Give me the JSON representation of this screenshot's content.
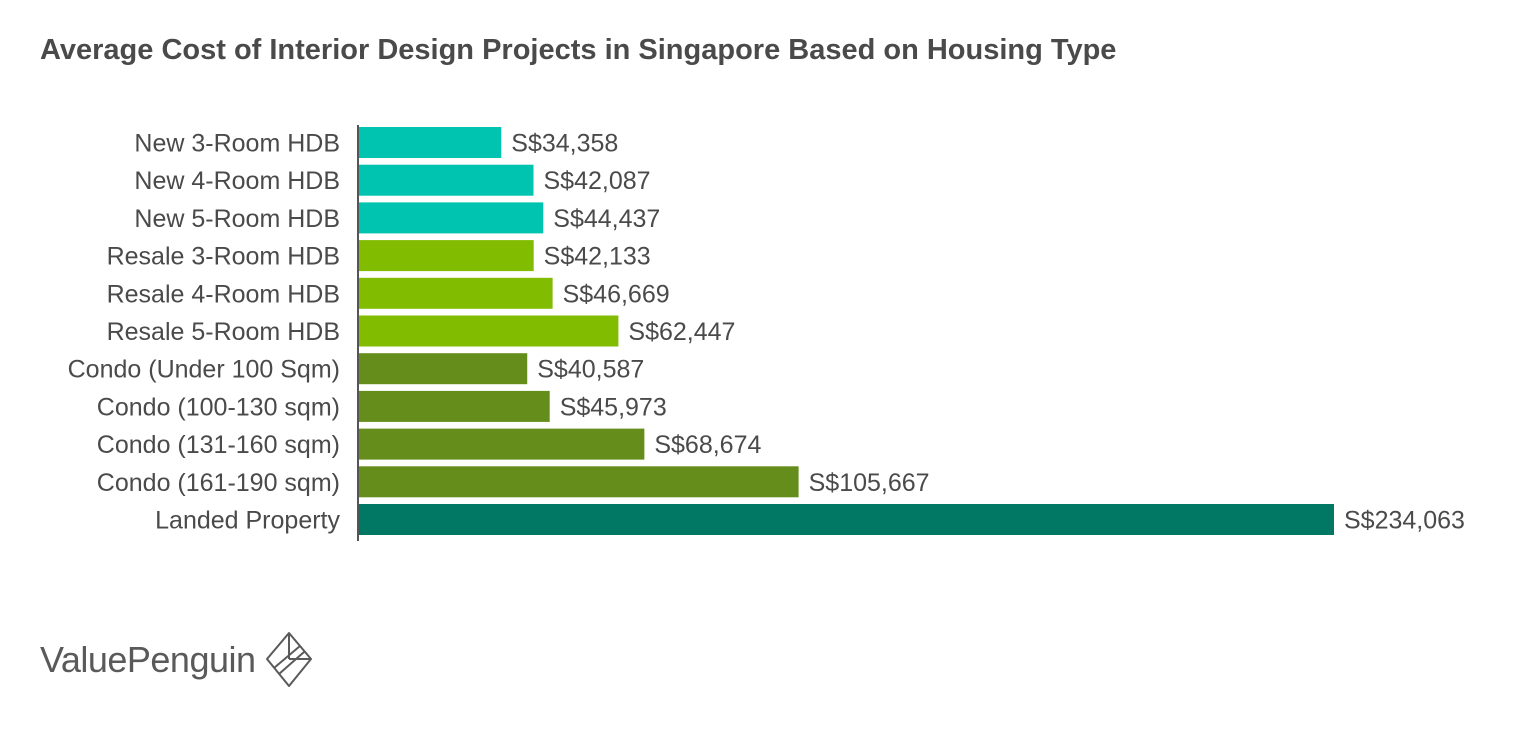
{
  "chart_data": {
    "type": "bar",
    "orientation": "horizontal",
    "title": "Average Cost of Interior Design Projects in Singapore Based on Housing Type",
    "xlabel": "",
    "ylabel": "",
    "xlim": [
      0,
      234063
    ],
    "grid": false,
    "categories": [
      "New 3-Room HDB",
      "New 4-Room HDB",
      "New 5-Room HDB",
      "Resale 3-Room HDB",
      "Resale 4-Room HDB",
      "Resale 5-Room HDB",
      "Condo (Under 100 Sqm)",
      "Condo (100-130 sqm)",
      "Condo (131-160 sqm)",
      "Condo (161-190 sqm)",
      "Landed Property"
    ],
    "values": [
      34358,
      42087,
      44437,
      42133,
      46669,
      62447,
      40587,
      45973,
      68674,
      105667,
      234063
    ],
    "labels": [
      "S$34,358",
      "S$42,087",
      "S$44,437",
      "S$42,133",
      "S$46,669",
      "S$62,447",
      "S$40,587",
      "S$45,973",
      "S$68,674",
      "S$105,667",
      "S$234,063"
    ],
    "colors": [
      "#00c4b0",
      "#00c4b0",
      "#00c4b0",
      "#82bc00",
      "#82bc00",
      "#82bc00",
      "#658d1b",
      "#658d1b",
      "#658d1b",
      "#658d1b",
      "#007864"
    ]
  },
  "brand": {
    "name": "ValuePenguin",
    "logo_icon": "valuepenguin-diamond-logo"
  }
}
